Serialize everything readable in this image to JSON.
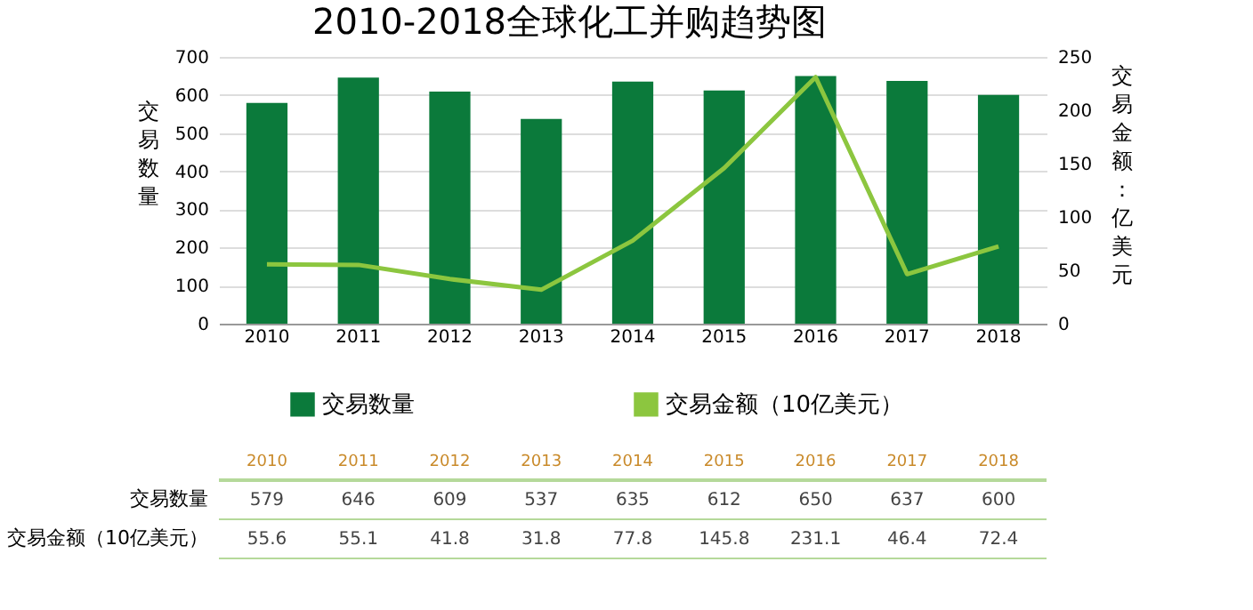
{
  "chart_data": {
    "type": "bar",
    "title": "2010-2018全球化工并购趋势图",
    "ylabel": "交易数量",
    "y2label": "交易金额：亿美元",
    "categories": [
      "2010",
      "2011",
      "2012",
      "2013",
      "2014",
      "2015",
      "2016",
      "2017",
      "2018"
    ],
    "series": [
      {
        "name": "交易数量",
        "color": "#0b7a3b",
        "values": [
          579,
          646,
          609,
          537,
          635,
          612,
          650,
          637,
          600
        ]
      },
      {
        "name": "交易金额（10亿美元）",
        "type": "line",
        "axis": "y2",
        "color": "#8cc63f",
        "values": [
          55.6,
          55.1,
          41.8,
          31.8,
          77.8,
          145.8,
          231.1,
          46.4,
          72.4
        ]
      }
    ],
    "ylim": [
      0,
      700
    ],
    "yticks": [
      0,
      100,
      200,
      300,
      400,
      500,
      600,
      700
    ],
    "y2lim": [
      0,
      250
    ],
    "y2ticks": [
      0,
      50,
      100,
      150,
      200,
      250
    ],
    "grid": "y",
    "legend": "bottom",
    "data_labels": true
  }
}
